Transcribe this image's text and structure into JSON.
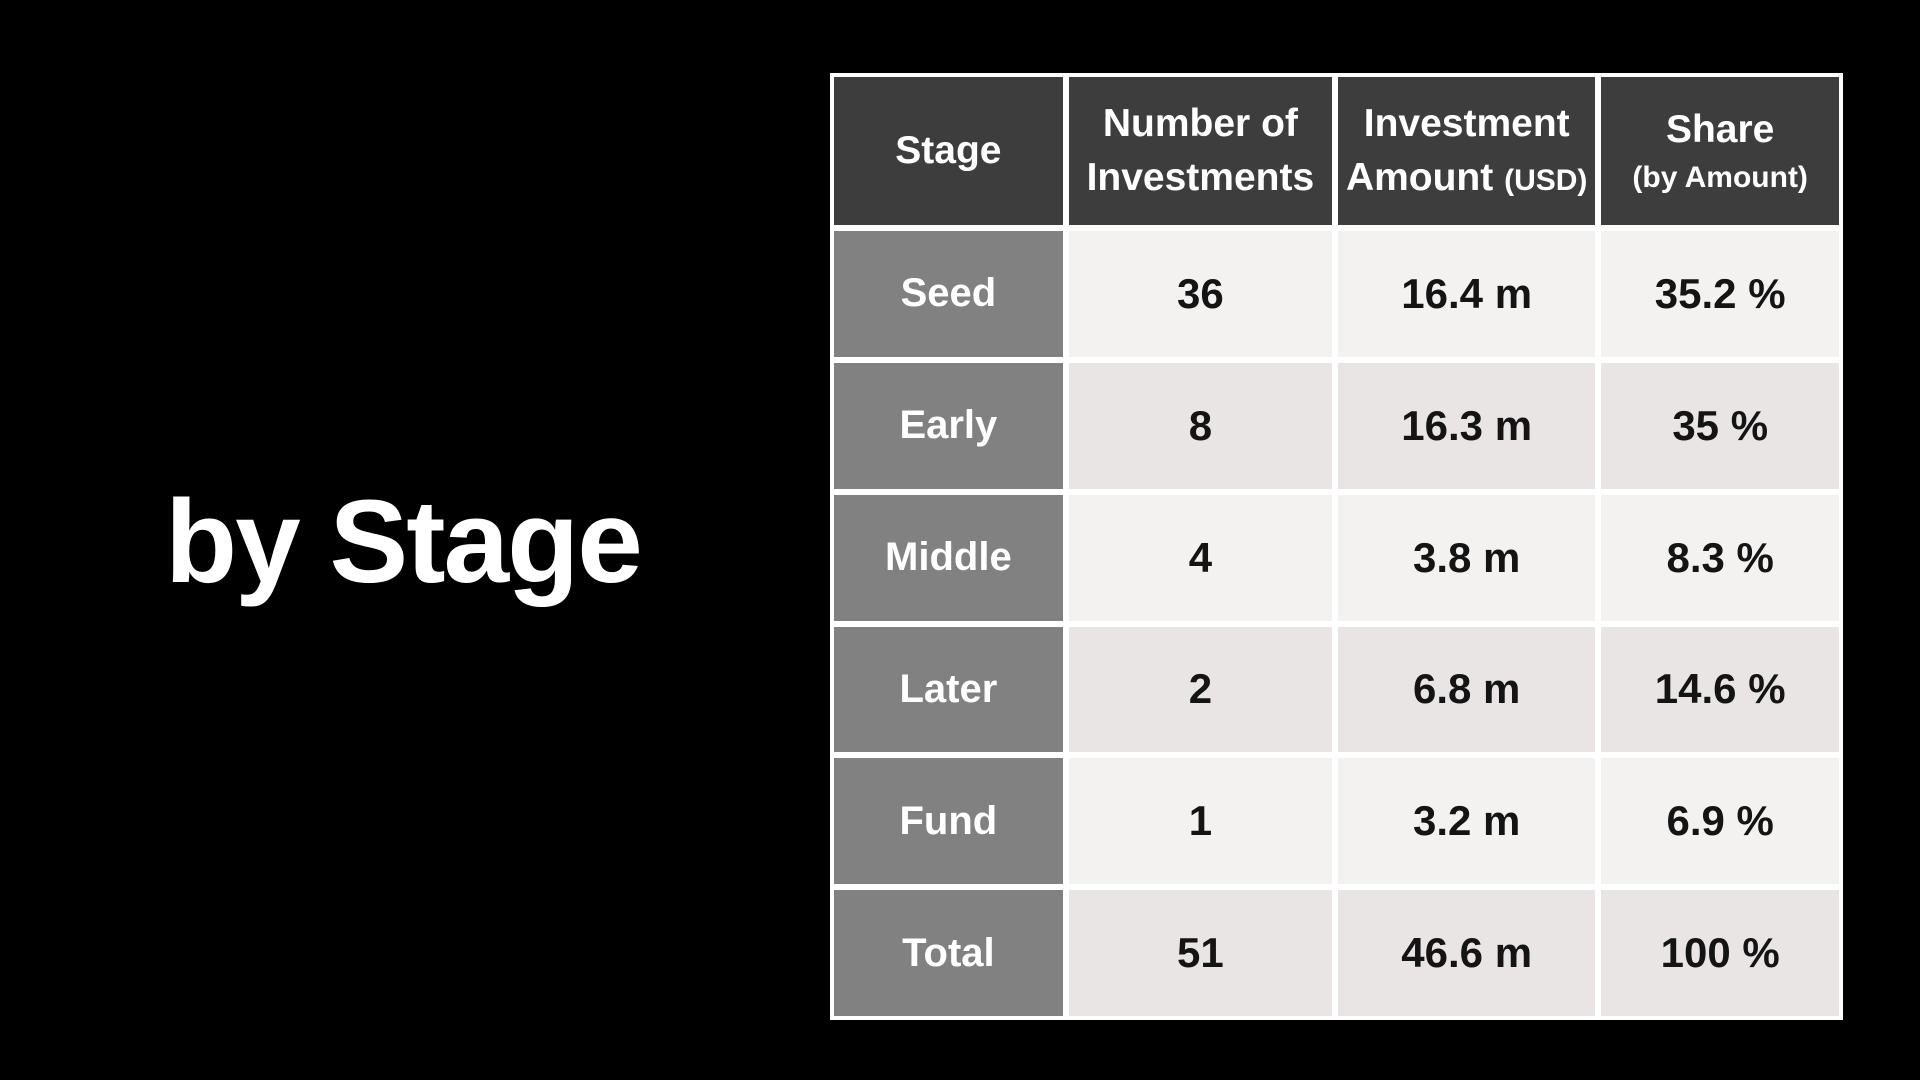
{
  "title": "by Stage",
  "colors": {
    "background": "#000000",
    "header_bg": "#3d3d3d",
    "stage_column_bg": "#818181",
    "row_light_bg": "#f3f2f1",
    "row_dark_bg": "#e9e5e4",
    "border": "#ffffff",
    "header_text": "#ffffff",
    "data_text": "#141414"
  },
  "table": {
    "headers": [
      {
        "main": "Stage"
      },
      {
        "line1": "Number of",
        "line2": "Investments"
      },
      {
        "line1": "Investment",
        "line2": "Amount",
        "small2": "(USD)"
      },
      {
        "line1": "Share",
        "small2": "(by Amount)"
      }
    ],
    "rows": [
      {
        "stage": "Seed",
        "count": "36",
        "amount": "16.4 m",
        "share": "35.2 %"
      },
      {
        "stage": "Early",
        "count": "8",
        "amount": "16.3 m",
        "share": "35 %"
      },
      {
        "stage": "Middle",
        "count": "4",
        "amount": "3.8 m",
        "share": "8.3 %"
      },
      {
        "stage": "Later",
        "count": "2",
        "amount": "6.8 m",
        "share": "14.6 %"
      },
      {
        "stage": "Fund",
        "count": "1",
        "amount": "3.2 m",
        "share": "6.9 %"
      },
      {
        "stage": "Total",
        "count": "51",
        "amount": "46.6 m",
        "share": "100 %"
      }
    ]
  },
  "chart_data": {
    "type": "table",
    "title": "by Stage",
    "columns": [
      "Stage",
      "Number of Investments",
      "Investment Amount (USD)",
      "Share (by Amount)"
    ],
    "rows": [
      [
        "Seed",
        36,
        "16.4 m",
        "35.2 %"
      ],
      [
        "Early",
        8,
        "16.3 m",
        "35 %"
      ],
      [
        "Middle",
        4,
        "3.8 m",
        "8.3 %"
      ],
      [
        "Later",
        2,
        "6.8 m",
        "14.6 %"
      ],
      [
        "Fund",
        1,
        "3.2 m",
        "6.9 %"
      ],
      [
        "Total",
        51,
        "46.6 m",
        "100 %"
      ]
    ]
  }
}
